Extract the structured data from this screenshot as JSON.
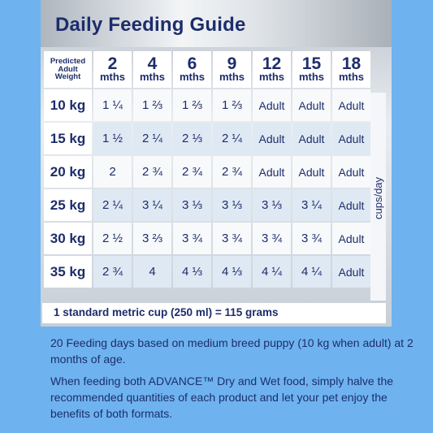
{
  "title": "Daily Feeding Guide",
  "header": {
    "corner": [
      "Predicted",
      "Adult",
      "Weight"
    ],
    "ages": [
      {
        "num": "2",
        "unit": "mths"
      },
      {
        "num": "4",
        "unit": "mths"
      },
      {
        "num": "6",
        "unit": "mths"
      },
      {
        "num": "9",
        "unit": "mths"
      },
      {
        "num": "12",
        "unit": "mths"
      },
      {
        "num": "15",
        "unit": "mths"
      },
      {
        "num": "18",
        "unit": "mths"
      }
    ]
  },
  "rows": [
    {
      "weight": "10 kg",
      "values": [
        "1 ¼",
        "1 ⅔",
        "1 ⅔",
        "1 ⅔",
        "Adult",
        "Adult",
        "Adult"
      ]
    },
    {
      "weight": "15 kg",
      "values": [
        "1 ½",
        "2 ¼",
        "2 ⅓",
        "2 ¼",
        "Adult",
        "Adult",
        "Adult"
      ]
    },
    {
      "weight": "20 kg",
      "values": [
        "2",
        "2 ¾",
        "2 ¾",
        "2 ¾",
        "Adult",
        "Adult",
        "Adult"
      ]
    },
    {
      "weight": "25 kg",
      "values": [
        "2 ¼",
        "3 ¼",
        "3 ⅓",
        "3 ⅓",
        "3 ⅓",
        "3 ¼",
        "Adult"
      ]
    },
    {
      "weight": "30 kg",
      "values": [
        "2 ½",
        "3 ⅔",
        "3 ¾",
        "3 ¾",
        "3 ¾",
        "3 ¾",
        "Adult"
      ]
    },
    {
      "weight": "35 kg",
      "values": [
        "2 ¾",
        "4",
        "4 ⅓",
        "4 ⅓",
        "4 ¼",
        "4 ¼",
        "Adult"
      ]
    }
  ],
  "unit_label": "cups/day",
  "cup_note": "1 standard metric cup (250 ml) = 115 grams",
  "paragraphs": [
    "20 Feeding days based on medium breed puppy (10 kg when adult) at 2 months of age.",
    "When feeding both ADVANCE™ Dry and Wet food, simply halve the recommended quantities of each product and let your pet enjoy the benefits of both formats."
  ],
  "colors": {
    "background": "#6eb3ef",
    "navy_text": "#1d2d6b",
    "cell_light": "#f7f9fb",
    "cell_alt": "#dfe9f4"
  }
}
